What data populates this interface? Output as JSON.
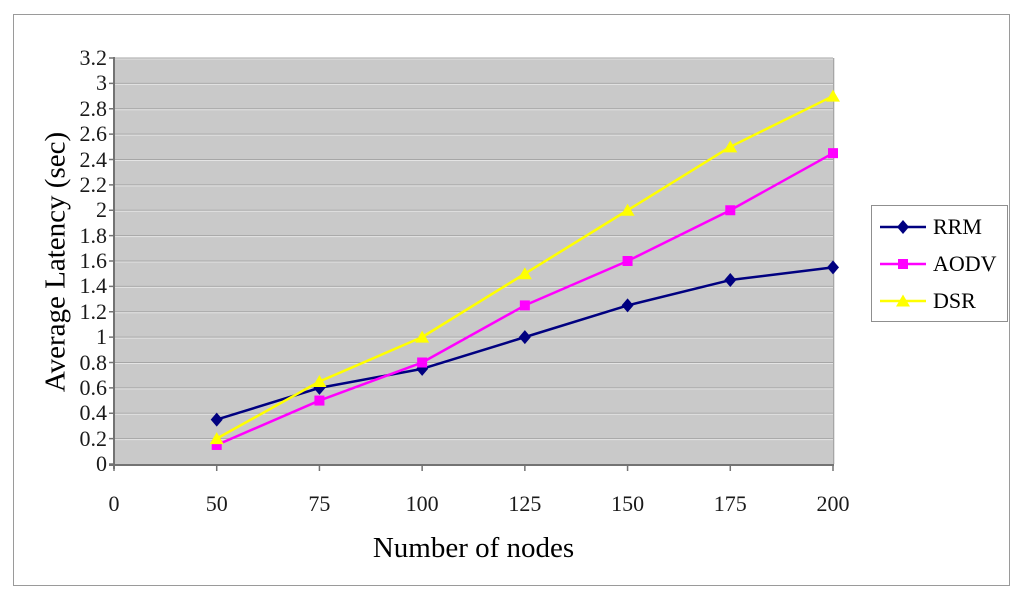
{
  "figure": {
    "background_color": "#ffffff",
    "border_color": "#9a9a9a"
  },
  "chart_data": {
    "type": "line",
    "xlabel": "Number of nodes",
    "ylabel": "Average Latency (sec)",
    "x_categories": [
      "0",
      "50",
      "75",
      "100",
      "125",
      "150",
      "175",
      "200"
    ],
    "y_tick_labels": [
      "0",
      "0.2",
      "0.4",
      "0.6",
      "0.8",
      "1",
      "1.2",
      "1.4",
      "1.6",
      "1.8",
      "2",
      "2.2",
      "2.4",
      "2.6",
      "2.8",
      "3",
      "3.2"
    ],
    "ylim": [
      0,
      3.2
    ],
    "y_step": 0.2,
    "grid": true,
    "plot_bg_color": "#c9c9c9",
    "gridline_color_dark": "#a6a6a6",
    "gridline_color_light": "#e4e4e4",
    "axis_color": "#737373",
    "legend_position": "right",
    "series": [
      {
        "name": "RRM",
        "color": "#000080",
        "marker": "diamond",
        "values": [
          null,
          0.35,
          0.6,
          0.75,
          1.0,
          1.25,
          1.45,
          1.55
        ]
      },
      {
        "name": "AODV",
        "color": "#ff00ff",
        "marker": "square",
        "values": [
          null,
          0.15,
          0.5,
          0.8,
          1.25,
          1.6,
          2.0,
          2.45
        ]
      },
      {
        "name": "DSR",
        "color": "#ffff00",
        "marker": "triangle",
        "values": [
          null,
          0.2,
          0.65,
          1.0,
          1.5,
          2.0,
          2.5,
          2.9
        ]
      }
    ]
  }
}
